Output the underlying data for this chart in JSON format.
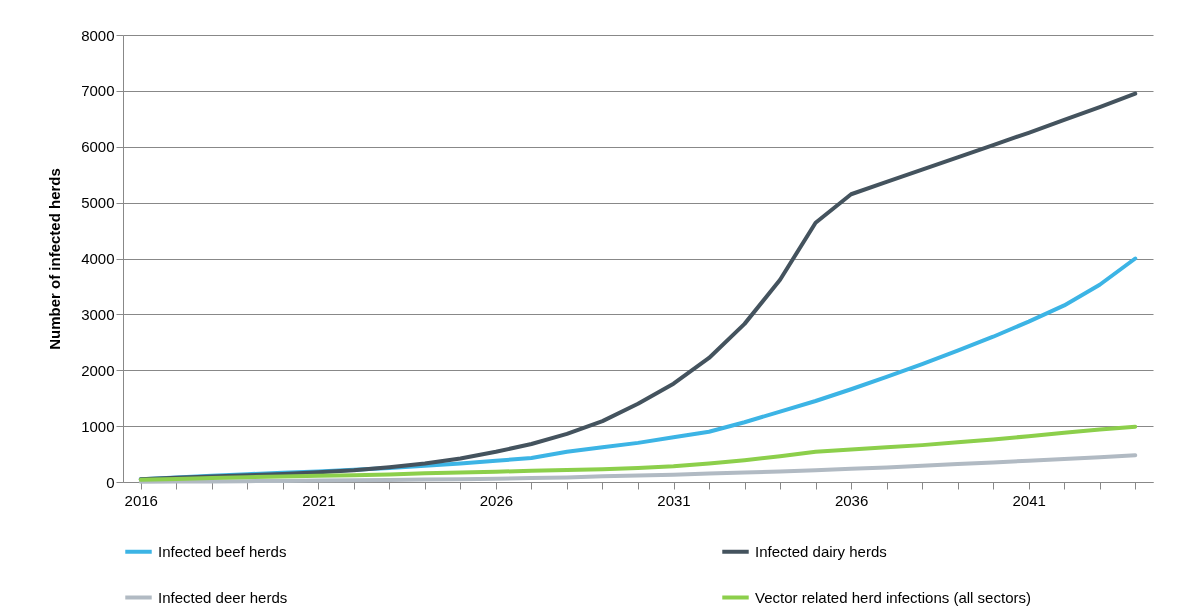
{
  "chart_data": {
    "type": "line",
    "ylabel": "Number of infected herds",
    "categories": [
      "2016",
      null,
      null,
      null,
      null,
      "2021",
      null,
      null,
      null,
      null,
      "2026",
      null,
      null,
      null,
      null,
      "2031",
      null,
      null,
      null,
      null,
      "2036",
      null,
      null,
      null,
      null,
      "2041",
      null,
      null,
      null
    ],
    "series": [
      {
        "name": "Infected beef herds",
        "color": "#3cb4e5",
        "values": [
          50,
          80,
          110,
          140,
          165,
          190,
          220,
          250,
          290,
          330,
          380,
          430,
          540,
          620,
          700,
          800,
          900,
          1070,
          1260,
          1450,
          1660,
          1880,
          2110,
          2350,
          2600,
          2870,
          3160,
          3530,
          4000
        ]
      },
      {
        "name": "Infected dairy herds",
        "color": "#44535e",
        "values": [
          50,
          75,
          100,
          120,
          145,
          175,
          210,
          265,
          330,
          420,
          540,
          680,
          860,
          1090,
          1400,
          1760,
          2220,
          2830,
          3620,
          4640,
          5150,
          5370,
          5590,
          5810,
          6030,
          6250,
          6480,
          6710,
          6950
        ]
      },
      {
        "name": "Infected deer herds",
        "color": "#b1bac3",
        "values": [
          5,
          8,
          11,
          15,
          20,
          25,
          30,
          36,
          43,
          50,
          60,
          70,
          82,
          105,
          115,
          130,
          150,
          170,
          190,
          210,
          235,
          260,
          290,
          320,
          350,
          380,
          410,
          445,
          480
        ]
      },
      {
        "name": "Vector related herd infections (all sectors)",
        "color": "#8ccf4b",
        "values": [
          40,
          55,
          70,
          85,
          100,
          110,
          120,
          135,
          155,
          170,
          185,
          200,
          215,
          230,
          250,
          280,
          330,
          390,
          460,
          540,
          580,
          620,
          660,
          710,
          760,
          820,
          880,
          940,
          990
        ]
      }
    ],
    "ylim": [
      0,
      8000
    ],
    "yticks": [
      0,
      1000,
      2000,
      3000,
      4000,
      5000,
      6000,
      7000,
      8000
    ],
    "grid": "y",
    "legend": "bottom",
    "marker": "none",
    "line_style": "solid"
  }
}
